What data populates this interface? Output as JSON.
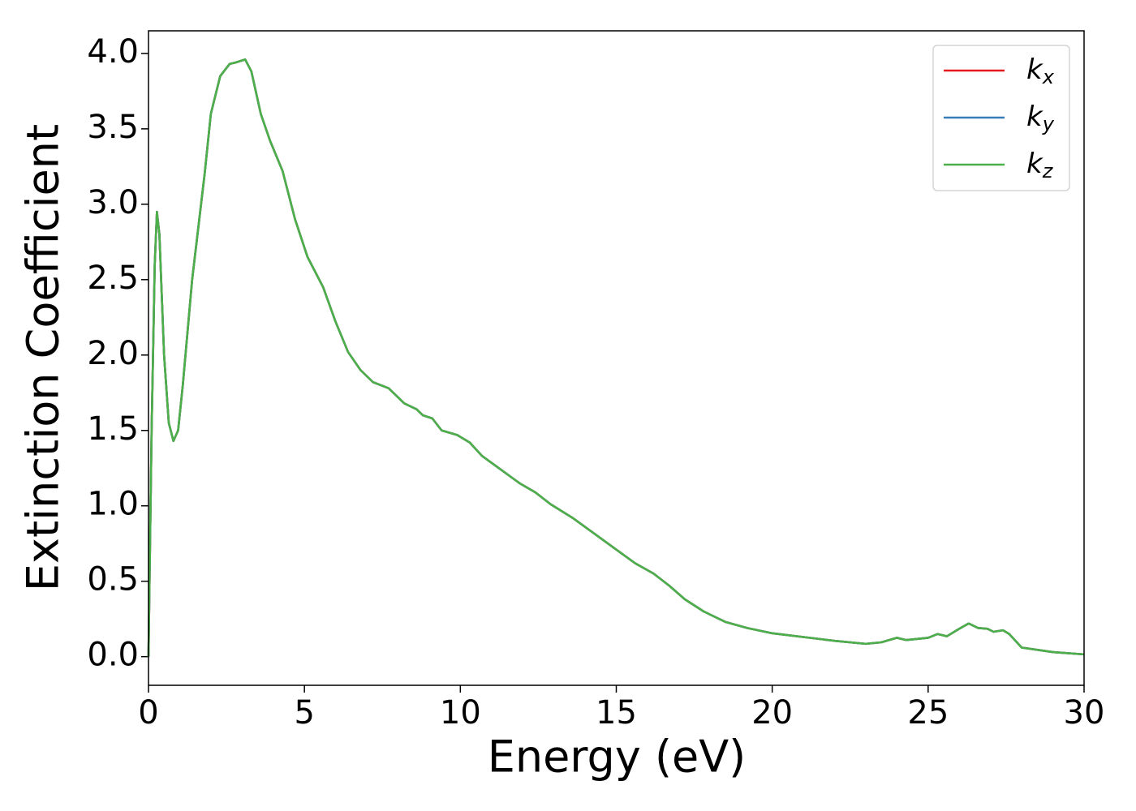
{
  "chart_data": {
    "type": "line",
    "x_label": "Energy (eV)",
    "y_label": "Extinction Coefficient",
    "x": [
      0,
      0.1,
      0.2,
      0.27,
      0.35,
      0.5,
      0.65,
      0.8,
      0.95,
      1.1,
      1.4,
      1.8,
      2.0,
      2.3,
      2.6,
      2.8,
      3.1,
      3.3,
      3.6,
      3.9,
      4.3,
      4.7,
      5.1,
      5.6,
      6.0,
      6.4,
      6.8,
      7.2,
      7.7,
      8.2,
      8.6,
      8.8,
      9.1,
      9.4,
      9.9,
      10.3,
      10.7,
      11.3,
      11.9,
      12.4,
      12.9,
      13.6,
      14.2,
      15.0,
      15.6,
      16.2,
      16.7,
      17.2,
      17.8,
      18.5,
      19.2,
      20.0,
      21.0,
      22.0,
      23.0,
      23.5,
      24.0,
      24.3,
      25.0,
      25.3,
      25.6,
      26.0,
      26.3,
      26.6,
      26.9,
      27.1,
      27.4,
      27.6,
      28.0,
      29.0,
      30.0
    ],
    "series": [
      {
        "name": "kx",
        "color": "#e41a1c",
        "values": [
          0,
          1.5,
          2.6,
          2.95,
          2.8,
          2.0,
          1.55,
          1.43,
          1.5,
          1.8,
          2.5,
          3.2,
          3.6,
          3.85,
          3.93,
          3.94,
          3.96,
          3.88,
          3.6,
          3.42,
          3.22,
          2.9,
          2.65,
          2.45,
          2.22,
          2.02,
          1.9,
          1.82,
          1.78,
          1.68,
          1.64,
          1.6,
          1.58,
          1.5,
          1.47,
          1.42,
          1.33,
          1.24,
          1.15,
          1.09,
          1.01,
          0.92,
          0.83,
          0.71,
          0.62,
          0.55,
          0.47,
          0.38,
          0.3,
          0.23,
          0.19,
          0.155,
          0.13,
          0.105,
          0.085,
          0.095,
          0.125,
          0.11,
          0.125,
          0.15,
          0.135,
          0.185,
          0.22,
          0.19,
          0.185,
          0.165,
          0.175,
          0.15,
          0.06,
          0.03,
          0.015
        ]
      },
      {
        "name": "ky",
        "color": "#377eb8",
        "values": [
          0,
          1.5,
          2.6,
          2.95,
          2.8,
          2.0,
          1.55,
          1.43,
          1.5,
          1.8,
          2.5,
          3.2,
          3.6,
          3.85,
          3.93,
          3.94,
          3.96,
          3.88,
          3.6,
          3.42,
          3.22,
          2.9,
          2.65,
          2.45,
          2.22,
          2.02,
          1.9,
          1.82,
          1.78,
          1.68,
          1.64,
          1.6,
          1.58,
          1.5,
          1.47,
          1.42,
          1.33,
          1.24,
          1.15,
          1.09,
          1.01,
          0.92,
          0.83,
          0.71,
          0.62,
          0.55,
          0.47,
          0.38,
          0.3,
          0.23,
          0.19,
          0.155,
          0.13,
          0.105,
          0.085,
          0.095,
          0.125,
          0.11,
          0.125,
          0.15,
          0.135,
          0.185,
          0.22,
          0.19,
          0.185,
          0.165,
          0.175,
          0.15,
          0.06,
          0.03,
          0.015
        ]
      },
      {
        "name": "kz",
        "color": "#4daf4a",
        "values": [
          0,
          1.5,
          2.6,
          2.95,
          2.8,
          2.0,
          1.55,
          1.43,
          1.5,
          1.8,
          2.5,
          3.2,
          3.6,
          3.85,
          3.93,
          3.94,
          3.96,
          3.88,
          3.6,
          3.42,
          3.22,
          2.9,
          2.65,
          2.45,
          2.22,
          2.02,
          1.9,
          1.82,
          1.78,
          1.68,
          1.64,
          1.6,
          1.58,
          1.5,
          1.47,
          1.42,
          1.33,
          1.24,
          1.15,
          1.09,
          1.01,
          0.92,
          0.83,
          0.71,
          0.62,
          0.55,
          0.47,
          0.38,
          0.3,
          0.23,
          0.19,
          0.155,
          0.13,
          0.105,
          0.085,
          0.095,
          0.125,
          0.11,
          0.125,
          0.15,
          0.135,
          0.185,
          0.22,
          0.19,
          0.185,
          0.165,
          0.175,
          0.15,
          0.06,
          0.03,
          0.015
        ]
      }
    ],
    "xlim": [
      0,
      30
    ],
    "xticks": [
      0,
      5,
      10,
      15,
      20,
      25,
      30
    ],
    "ylim": [
      -0.19,
      4.15
    ],
    "yticks": [
      {
        "value": 0,
        "label": "0.0"
      },
      0.5,
      {
        "value": 1,
        "label": "1.0"
      },
      1.5,
      {
        "value": 2,
        "label": "2.0"
      },
      2.5,
      {
        "value": 3,
        "label": "3.0"
      },
      3.5,
      {
        "value": 4,
        "label": "4.0"
      }
    ],
    "legend": "upper right",
    "grid": false
  }
}
